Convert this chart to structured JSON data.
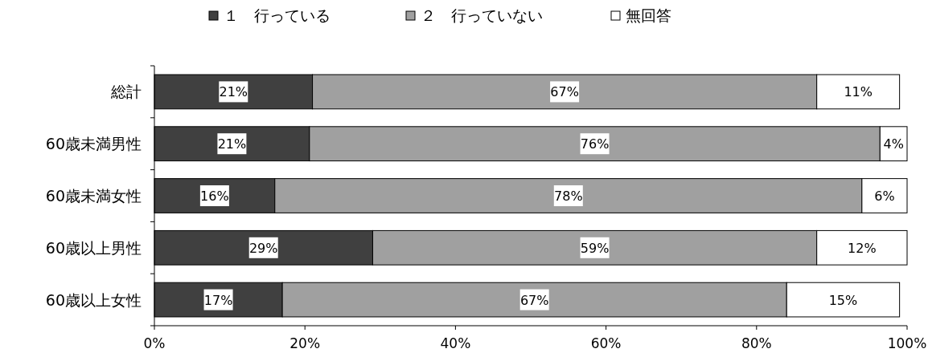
{
  "chart_data": {
    "type": "bar",
    "orientation": "horizontal",
    "stacked": true,
    "legend": "top",
    "grid": false,
    "categories": [
      "総計",
      "60歳未満男性",
      "60歳未満女性",
      "60歳以上男性",
      "60歳以上女性"
    ],
    "series": [
      {
        "name": "１　行っている",
        "color": "#404040",
        "values": [
          21,
          20.6,
          16,
          29,
          17
        ],
        "value_labels": [
          "21%",
          "21%",
          "16%",
          "29%",
          "17%"
        ]
      },
      {
        "name": "２　行っていない",
        "color": "#a0a0a0",
        "values": [
          67,
          75.8,
          78,
          59,
          67
        ],
        "value_labels": [
          "67%",
          "76%",
          "78%",
          "59%",
          "67%"
        ]
      },
      {
        "name": "無回答",
        "color": "#ffffff",
        "values": [
          11,
          3.6,
          6,
          12,
          15
        ],
        "value_labels": [
          "11%",
          "4%",
          "6%",
          "12%",
          "15%"
        ]
      }
    ],
    "xlim": [
      0,
      100
    ],
    "xticks": [
      {
        "value": 0,
        "label": "0%"
      },
      {
        "value": 20,
        "label": "20%"
      },
      {
        "value": 40,
        "label": "40%"
      },
      {
        "value": 60,
        "label": "60%"
      },
      {
        "value": 80,
        "label": "80%"
      },
      {
        "value": 100,
        "label": "100%"
      }
    ]
  }
}
